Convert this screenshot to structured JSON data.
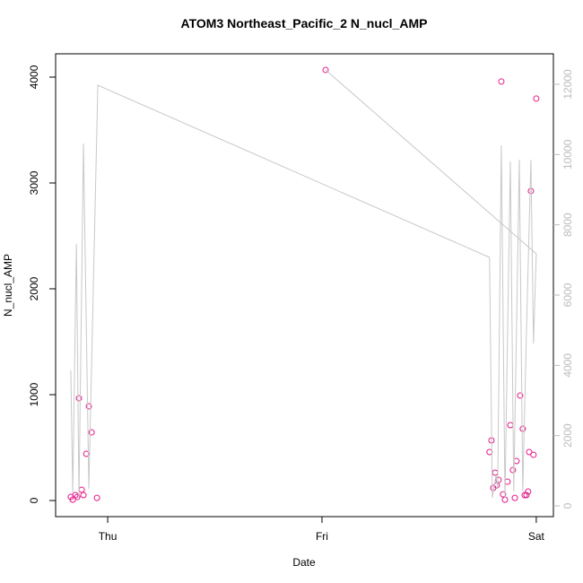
{
  "chart_data": {
    "type": "scatter",
    "title": "ATOM3 Northeast_Pacific_2 N_nucl_AMP",
    "xlabel": "Date",
    "ylabel": "N_nucl_AMP",
    "xlim": [
      -0.243,
      2.08
    ],
    "xticks": [
      {
        "value": 0,
        "label": "Thu"
      },
      {
        "value": 1,
        "label": "Fri"
      },
      {
        "value": 2,
        "label": "Sat"
      }
    ],
    "ylim": [
      -152,
      4220
    ],
    "yticks": [
      0,
      1000,
      2000,
      3000,
      4000
    ],
    "y2lim": [
      -306,
      12867
    ],
    "y2ticks": [
      0,
      2000,
      4000,
      6000,
      8000,
      10000,
      12000
    ],
    "y2color": "#bbbbbb",
    "series": [
      {
        "type": "scatter",
        "color": "#e6198a",
        "x": [
          -0.172,
          -0.163,
          -0.151,
          -0.142,
          -0.134,
          -0.121,
          -0.113,
          -0.1,
          -0.088,
          -0.075,
          -0.05,
          1.017,
          1.782,
          1.791,
          1.799,
          1.808,
          1.816,
          1.824,
          1.837,
          1.845,
          1.854,
          1.866,
          1.879,
          1.891,
          1.9,
          1.908,
          1.925,
          1.937,
          1.946,
          1.954,
          1.962,
          1.967,
          1.975,
          1.987,
          2.0
        ],
        "values": [
          34,
          8,
          51,
          34,
          966,
          102,
          51,
          441,
          890,
          644,
          25,
          4068,
          458,
          568,
          119,
          263,
          144,
          195,
          3958,
          59,
          8,
          178,
          712,
          288,
          25,
          373,
          992,
          678,
          51,
          51,
          85,
          458,
          2924,
          432,
          3797
        ]
      },
      {
        "type": "line",
        "axis": "y2",
        "color": "#c8c8c8",
        "x": [
          -0.172,
          -0.163,
          -0.146,
          -0.134,
          -0.113,
          -0.088,
          -0.046,
          1.782,
          1.795,
          1.812,
          1.82,
          1.837,
          1.854,
          1.879,
          1.895,
          1.921,
          1.937,
          1.954,
          1.975,
          1.987,
          2.0,
          1.017
        ],
        "values": [
          3855,
          357,
          7455,
          230,
          10314,
          485,
          11973,
          7072,
          230,
          868,
          485,
          10263,
          230,
          9803,
          408,
          9855,
          408,
          4900,
          9855,
          4621,
          7174,
          12408
        ]
      }
    ]
  }
}
